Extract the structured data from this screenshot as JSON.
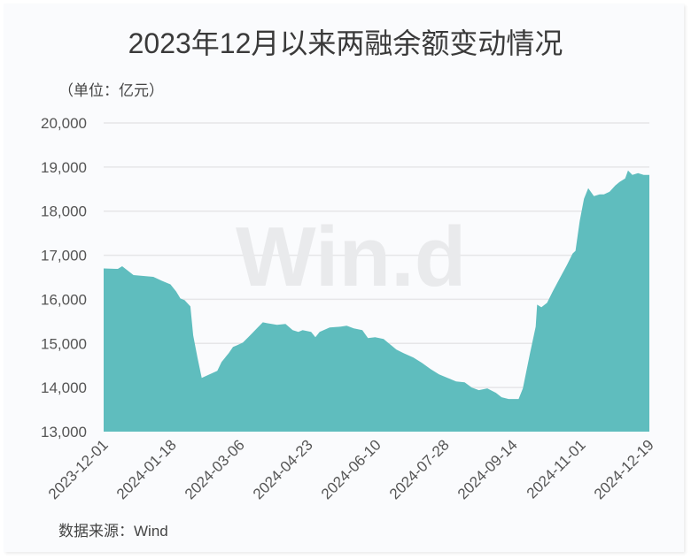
{
  "title": "2023年12月以来两融余额变动情况",
  "unit_label": "（单位：亿元）",
  "source_label": "数据来源：Wind",
  "watermark": "Win.d",
  "colors": {
    "fill": "#5fbdbe",
    "grid": "#e6e6e8",
    "background": "#fafbfd",
    "text": "#3a3a3a"
  },
  "chart_data": {
    "type": "area",
    "title": "2023年12月以来两融余额变动情况",
    "xlabel": "",
    "ylabel": "单位：亿元",
    "ylim": [
      13000,
      20000
    ],
    "yticks": [
      13000,
      14000,
      15000,
      16000,
      17000,
      18000,
      19000,
      20000
    ],
    "ytick_labels": [
      "13,000",
      "14,000",
      "15,000",
      "16,000",
      "17,000",
      "18,000",
      "19,000",
      "20,000"
    ],
    "xtick_labels": [
      "2023-12-01",
      "2024-01-18",
      "2024-03-06",
      "2024-04-23",
      "2024-06-10",
      "2024-07-28",
      "2024-09-14",
      "2024-11-01",
      "2024-12-19"
    ],
    "grid": true,
    "legend": "none",
    "series": [
      {
        "name": "两融余额",
        "points": [
          [
            "2023-12-01",
            16700
          ],
          [
            "2023-12-11",
            16690
          ],
          [
            "2023-12-14",
            16750
          ],
          [
            "2023-12-22",
            16550
          ],
          [
            "2023-12-29",
            16530
          ],
          [
            "2024-01-05",
            16510
          ],
          [
            "2024-01-11",
            16420
          ],
          [
            "2024-01-17",
            16340
          ],
          [
            "2024-01-21",
            16180
          ],
          [
            "2024-01-24",
            16020
          ],
          [
            "2024-01-27",
            15980
          ],
          [
            "2024-01-31",
            15840
          ],
          [
            "2024-02-02",
            15180
          ],
          [
            "2024-02-05",
            14680
          ],
          [
            "2024-02-08",
            14220
          ],
          [
            "2024-02-19",
            14380
          ],
          [
            "2024-02-22",
            14580
          ],
          [
            "2024-02-27",
            14780
          ],
          [
            "2024-03-01",
            14920
          ],
          [
            "2024-03-04",
            14960
          ],
          [
            "2024-03-08",
            15020
          ],
          [
            "2024-03-13",
            15180
          ],
          [
            "2024-03-19",
            15380
          ],
          [
            "2024-03-22",
            15480
          ],
          [
            "2024-03-25",
            15460
          ],
          [
            "2024-04-01",
            15420
          ],
          [
            "2024-04-07",
            15440
          ],
          [
            "2024-04-12",
            15300
          ],
          [
            "2024-04-16",
            15260
          ],
          [
            "2024-04-19",
            15300
          ],
          [
            "2024-04-25",
            15260
          ],
          [
            "2024-04-28",
            15140
          ],
          [
            "2024-05-01",
            15260
          ],
          [
            "2024-05-08",
            15360
          ],
          [
            "2024-05-16",
            15380
          ],
          [
            "2024-05-20",
            15400
          ],
          [
            "2024-05-25",
            15340
          ],
          [
            "2024-05-31",
            15300
          ],
          [
            "2024-06-04",
            15120
          ],
          [
            "2024-06-09",
            15140
          ],
          [
            "2024-06-15",
            15100
          ],
          [
            "2024-06-18",
            15020
          ],
          [
            "2024-06-24",
            14860
          ],
          [
            "2024-06-29",
            14780
          ],
          [
            "2024-07-06",
            14680
          ],
          [
            "2024-07-12",
            14560
          ],
          [
            "2024-07-18",
            14420
          ],
          [
            "2024-07-24",
            14300
          ],
          [
            "2024-07-30",
            14220
          ],
          [
            "2024-08-05",
            14140
          ],
          [
            "2024-08-11",
            14120
          ],
          [
            "2024-08-16",
            14000
          ],
          [
            "2024-08-21",
            13940
          ],
          [
            "2024-08-27",
            13980
          ],
          [
            "2024-09-02",
            13880
          ],
          [
            "2024-09-06",
            13780
          ],
          [
            "2024-09-11",
            13740
          ],
          [
            "2024-09-18",
            13740
          ],
          [
            "2024-09-21",
            13980
          ],
          [
            "2024-09-26",
            14780
          ],
          [
            "2024-09-30",
            15380
          ],
          [
            "2024-10-01",
            15880
          ],
          [
            "2024-10-04",
            15820
          ],
          [
            "2024-10-08",
            15920
          ],
          [
            "2024-10-12",
            16180
          ],
          [
            "2024-10-17",
            16480
          ],
          [
            "2024-10-22",
            16780
          ],
          [
            "2024-10-26",
            17040
          ],
          [
            "2024-10-28",
            17100
          ],
          [
            "2024-10-31",
            17780
          ],
          [
            "2024-11-03",
            18280
          ],
          [
            "2024-11-06",
            18520
          ],
          [
            "2024-11-10",
            18340
          ],
          [
            "2024-11-14",
            18380
          ],
          [
            "2024-11-17",
            18380
          ],
          [
            "2024-11-21",
            18440
          ],
          [
            "2024-11-25",
            18580
          ],
          [
            "2024-11-28",
            18660
          ],
          [
            "2024-12-02",
            18740
          ],
          [
            "2024-12-04",
            18920
          ],
          [
            "2024-12-07",
            18820
          ],
          [
            "2024-12-11",
            18860
          ],
          [
            "2024-12-15",
            18820
          ]
        ]
      }
    ]
  }
}
